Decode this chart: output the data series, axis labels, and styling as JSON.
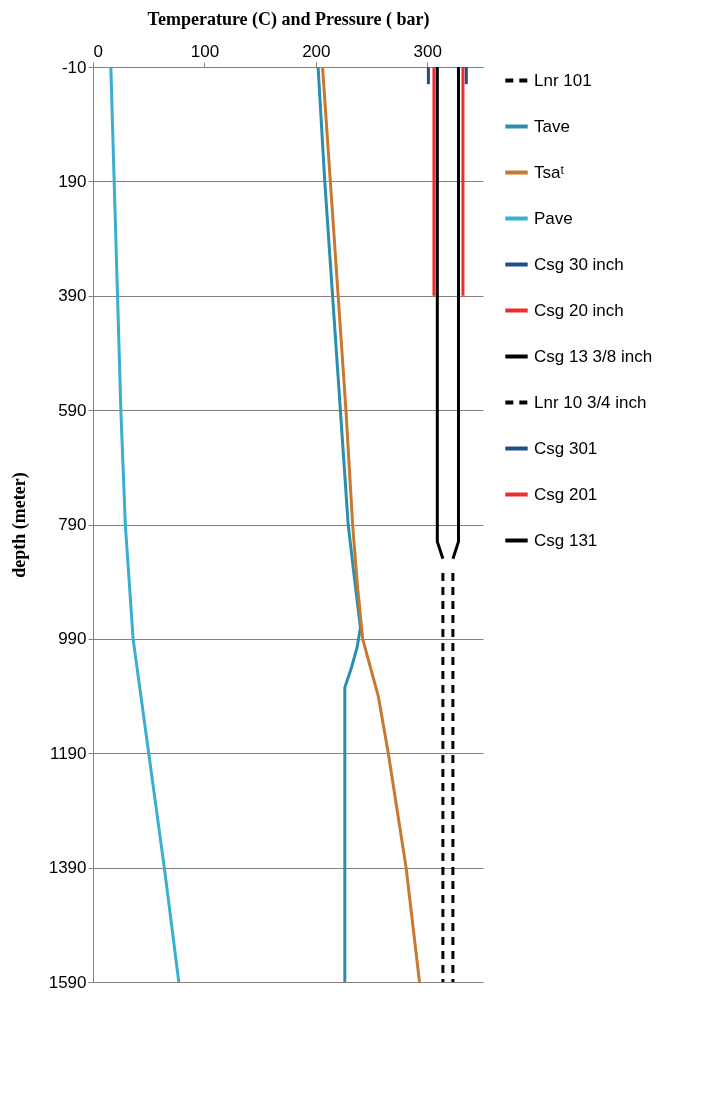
{
  "chart_data": {
    "type": "line",
    "xlabel": "Temperature (C) and Pressure ( bar)",
    "ylabel": "depth (meter)",
    "xlim": [
      0,
      350
    ],
    "xticks": [
      0,
      100,
      200,
      300
    ],
    "ylim": [
      1590,
      -10
    ],
    "yticks": [
      -10,
      190,
      390,
      590,
      790,
      990,
      1190,
      1390,
      1590
    ],
    "grid": "y",
    "legend": "right",
    "marker": "none",
    "series": [
      {
        "name": "Lnr 101",
        "color": "#000000",
        "line_style": "dashed",
        "x": [
          323,
          323
        ],
        "values": [
          875,
          1590
        ]
      },
      {
        "name": "Tave",
        "color": "#2a8fab",
        "line_style": "solid",
        "x": [
          202,
          208,
          215,
          222,
          229,
          235,
          240,
          237,
          232,
          226,
          226,
          226,
          226
        ],
        "values": [
          -10,
          190,
          390,
          590,
          790,
          890,
          970,
          1005,
          1040,
          1075,
          1190,
          1390,
          1590
        ]
      },
      {
        "name": "Tsaᵗ",
        "color": "#c8782f",
        "line_style": "solid",
        "x": [
          206,
          213,
          220,
          227,
          233,
          237,
          242,
          256,
          265,
          273,
          281,
          287,
          293
        ],
        "values": [
          -10,
          190,
          390,
          590,
          790,
          890,
          990,
          1090,
          1190,
          1290,
          1390,
          1490,
          1590
        ]
      },
      {
        "name": "Pave",
        "color": "#3aaed0",
        "line_style": "solid",
        "x": [
          16,
          19,
          22,
          25,
          29,
          36,
          50,
          64,
          77
        ],
        "values": [
          -10,
          190,
          390,
          590,
          790,
          990,
          1190,
          1390,
          1590
        ]
      },
      {
        "name": "Csg 30 inch",
        "color": "#1f4e8c",
        "line_style": "solid",
        "x": [
          301,
          301
        ],
        "values": [
          -10,
          20
        ]
      },
      {
        "name": "Csg 20 inch",
        "color": "#f02b2b",
        "line_style": "solid",
        "x": [
          306,
          306
        ],
        "values": [
          -10,
          390
        ]
      },
      {
        "name": "Csg 13 3/8 inch",
        "color": "#000000",
        "line_style": "solid",
        "x": [
          309,
          309,
          314
        ],
        "values": [
          -10,
          820,
          850
        ]
      },
      {
        "name": "Lnr 10 3/4 inch",
        "color": "#000000",
        "line_style": "dashed",
        "x": [
          314,
          314
        ],
        "values": [
          875,
          1590
        ]
      },
      {
        "name": "Csg 301",
        "color": "#1f4e8c",
        "line_style": "solid",
        "x": [
          335,
          335
        ],
        "values": [
          -10,
          20
        ]
      },
      {
        "name": "Csg 201",
        "color": "#f02b2b",
        "line_style": "solid",
        "x": [
          332,
          332
        ],
        "values": [
          -10,
          390
        ]
      },
      {
        "name": "Csg 131",
        "color": "#000000",
        "line_style": "solid",
        "x": [
          328,
          328,
          323
        ],
        "values": [
          -10,
          820,
          850
        ]
      }
    ]
  }
}
